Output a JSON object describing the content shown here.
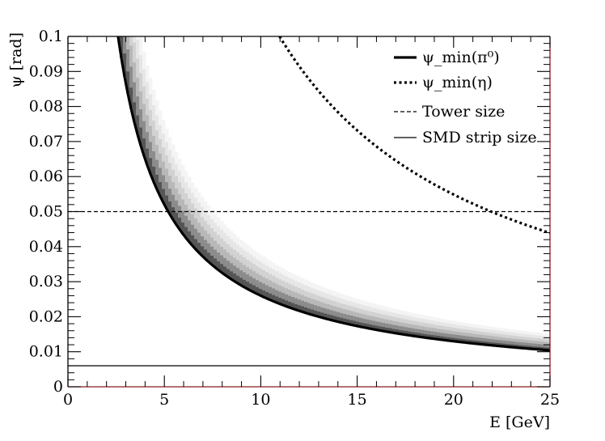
{
  "chart_data": {
    "type": "scatter",
    "title": "",
    "xlabel": "E [GeV]",
    "ylabel": "ψ [rad]",
    "xlim": [
      0,
      25
    ],
    "ylim": [
      0,
      0.1
    ],
    "x_ticks": [
      "0",
      "5",
      "10",
      "15",
      "20",
      "25"
    ],
    "y_ticks": [
      "0",
      "0.01",
      "0.02",
      "0.03",
      "0.04",
      "0.05",
      "0.06",
      "0.07",
      "0.08",
      "0.09",
      "0.1"
    ],
    "grid": false,
    "legend_position": "top-right",
    "legend": [
      {
        "label": "ψ_min(π⁰)",
        "style": "thick-solid"
      },
      {
        "label": "ψ_min(η)",
        "style": "thick-dotted"
      },
      {
        "label": "Tower size",
        "style": "thin-dashed"
      },
      {
        "label": "SMD strip size",
        "style": "thin-solid"
      }
    ],
    "series": [
      {
        "curve": "psi_min_pi0",
        "style": "thick-solid",
        "x": [
          2.6,
          3,
          4,
          5,
          6,
          7,
          8,
          10,
          12,
          15,
          18,
          20,
          22,
          25
        ],
        "y": [
          0.1,
          0.0866,
          0.065,
          0.052,
          0.0433,
          0.0371,
          0.0325,
          0.026,
          0.0217,
          0.0173,
          0.0144,
          0.013,
          0.0118,
          0.0104
        ]
      },
      {
        "curve": "psi_min_eta",
        "style": "thick-dotted",
        "x": [
          10.9,
          12,
          14,
          16,
          18,
          20,
          22,
          25
        ],
        "y": [
          0.1,
          0.0915,
          0.0784,
          0.0686,
          0.061,
          0.0549,
          0.0499,
          0.0439
        ]
      },
      {
        "curve": "tower_size",
        "style": "thin-dashed",
        "x": [
          0,
          25
        ],
        "y": [
          0.05,
          0.05
        ]
      },
      {
        "curve": "smd_strip_size",
        "style": "thin-solid",
        "x": [
          0,
          25
        ],
        "y": [
          0.006,
          0.006
        ]
      }
    ],
    "heatmap": {
      "description_of_band": "grayscale density band lying above the psi_min(pi0) curve",
      "colors": [
        "#f4f4f4",
        "#e6e6e6",
        "#d2d2d2",
        "#b8b8b8",
        "#8c8c8c",
        "#555555"
      ],
      "upper_edge_factor": 1.45
    },
    "colors": {
      "frame_bottom_right": "#8b1a1a",
      "frame": "#000000"
    }
  }
}
